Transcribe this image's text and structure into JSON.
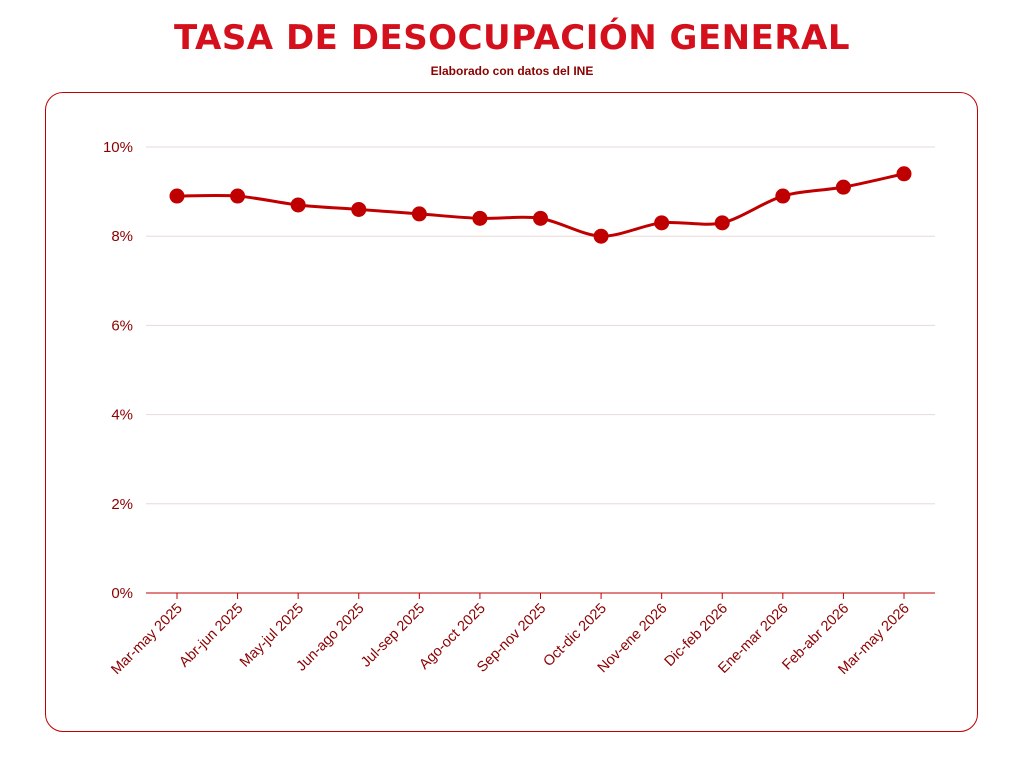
{
  "chart_data": {
    "type": "line",
    "title": "TASA DE DESOCUPACIÓN GENERAL",
    "subtitle": "Elaborado con datos del INE",
    "xlabel": "",
    "ylabel": "",
    "categories": [
      "Mar-may 2025",
      "Abr-jun 2025",
      "May-jul 2025",
      "Jun-ago 2025",
      "Jul-sep 2025",
      "Ago-oct 2025",
      "Sep-nov 2025",
      "Oct-dic 2025",
      "Nov-ene 2026",
      "Dic-feb 2026",
      "Ene-mar 2026",
      "Feb-abr 2026",
      "Mar-may 2026"
    ],
    "series": [
      {
        "values": [
          8.9,
          8.9,
          8.7,
          8.6,
          8.5,
          8.4,
          8.4,
          8.0,
          8.3,
          8.3,
          8.9,
          9.1,
          9.4
        ]
      }
    ],
    "ylim": [
      0,
      10
    ],
    "yticks": [
      0,
      2,
      4,
      6,
      8,
      10
    ],
    "ytick_labels": [
      "0%",
      "2%",
      "4%",
      "6%",
      "8%",
      "10%"
    ],
    "grid": true,
    "legend": "none"
  },
  "colors": {
    "accent": "#c00000",
    "grid": "#ead8d8",
    "title": "#d4101c",
    "text": "#8b0000"
  }
}
